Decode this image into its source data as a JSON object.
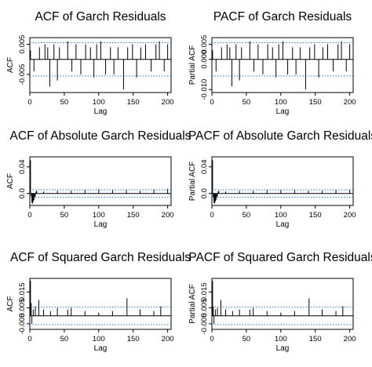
{
  "colors": {
    "bar": "#000000",
    "zero_line": "#000000",
    "confidence_band": "#1f77d4",
    "frame": "#000000",
    "background": "#ffffff"
  },
  "chart_data": [
    {
      "type": "bar",
      "title": "ACF of Garch Residuals",
      "xlabel": "Lag",
      "ylabel": "ACF",
      "xlim": [
        0,
        205
      ],
      "ylim": [
        -0.011,
        0.0072
      ],
      "xticks": [
        0,
        50,
        100,
        150,
        200
      ],
      "yticks": [
        -0.005,
        0.005
      ],
      "ytick_labels": [
        "-0.005",
        "0.005"
      ],
      "confidence_band": [
        -0.0055,
        0.0055
      ],
      "series": [
        {
          "lags": [
            1,
            6,
            14,
            22,
            26,
            29,
            35,
            40,
            43,
            55,
            61,
            67,
            74,
            81,
            88,
            93,
            97,
            103,
            110,
            117,
            122,
            128,
            136,
            142,
            149,
            155,
            161,
            168,
            176,
            183,
            188,
            195,
            200
          ],
          "values": [
            0.003,
            -0.004,
            0.004,
            0.005,
            0.004,
            -0.009,
            0.005,
            -0.007,
            0.004,
            0.006,
            -0.004,
            0.005,
            -0.005,
            0.005,
            0.004,
            -0.006,
            0.005,
            0.006,
            -0.005,
            0.004,
            -0.005,
            0.004,
            -0.01,
            0.004,
            0.005,
            -0.006,
            0.004,
            0.005,
            -0.004,
            0.005,
            0.006,
            -0.004,
            0.005
          ]
        }
      ]
    },
    {
      "type": "bar",
      "title": "PACF of Garch Residuals",
      "xlabel": "Lag",
      "ylabel": "Partial ACF",
      "xlim": [
        0,
        205
      ],
      "ylim": [
        -0.011,
        0.0072
      ],
      "xticks": [
        0,
        50,
        100,
        150,
        200
      ],
      "yticks": [
        -0.01,
        0.0,
        0.005
      ],
      "ytick_labels": [
        "-0.010",
        "0.000",
        "0.005"
      ],
      "confidence_band": [
        -0.0055,
        0.0055
      ],
      "series": [
        {
          "lags": [
            1,
            6,
            14,
            22,
            26,
            29,
            35,
            40,
            43,
            55,
            61,
            67,
            74,
            81,
            88,
            93,
            97,
            103,
            110,
            117,
            122,
            128,
            136,
            142,
            149,
            155,
            161,
            168,
            176,
            183,
            188,
            195,
            200
          ],
          "values": [
            0.003,
            -0.004,
            0.004,
            0.005,
            0.004,
            -0.009,
            0.005,
            -0.007,
            0.004,
            0.006,
            -0.004,
            0.005,
            -0.005,
            0.005,
            0.004,
            -0.006,
            0.005,
            0.006,
            -0.005,
            0.004,
            -0.005,
            0.004,
            -0.01,
            0.004,
            0.005,
            -0.006,
            0.004,
            0.005,
            -0.004,
            0.005,
            0.006,
            -0.004,
            0.005
          ]
        }
      ]
    },
    {
      "type": "bar",
      "title": "ACF of Absolute Garch Residuals",
      "xlabel": "Lag",
      "ylabel": "ACF",
      "xlim": [
        0,
        205
      ],
      "ylim": [
        -0.018,
        0.055
      ],
      "xticks": [
        0,
        50,
        100,
        150,
        200
      ],
      "yticks": [
        0.0,
        0.04
      ],
      "ytick_labels": [
        "0.0",
        "0.04"
      ],
      "confidence_band": [
        -0.0055,
        0.0055
      ],
      "series": [
        {
          "lags": [
            1,
            2,
            3,
            4,
            5,
            6,
            7,
            8,
            9,
            10,
            20,
            40,
            60,
            80,
            100,
            120,
            140,
            160,
            180,
            200
          ],
          "values": [
            0.05,
            -0.004,
            -0.014,
            -0.015,
            -0.012,
            -0.01,
            -0.006,
            -0.004,
            0.003,
            0.004,
            0.003,
            0.004,
            0.004,
            0.005,
            0.006,
            0.005,
            0.005,
            0.004,
            0.006,
            0.007
          ]
        }
      ]
    },
    {
      "type": "bar",
      "title": "PACF of Absolute Garch Residuals",
      "xlabel": "Lag",
      "ylabel": "Partial ACF",
      "xlim": [
        0,
        205
      ],
      "ylim": [
        -0.018,
        0.055
      ],
      "xticks": [
        0,
        50,
        100,
        150,
        200
      ],
      "yticks": [
        0.0,
        0.04
      ],
      "ytick_labels": [
        "0.0",
        "0.04"
      ],
      "confidence_band": [
        -0.0055,
        0.0055
      ],
      "series": [
        {
          "lags": [
            1,
            2,
            3,
            4,
            5,
            6,
            7,
            8,
            9,
            10,
            20,
            40,
            60,
            80,
            100,
            120,
            140,
            160,
            180,
            200
          ],
          "values": [
            0.05,
            -0.006,
            -0.014,
            -0.015,
            -0.012,
            -0.01,
            -0.006,
            -0.004,
            0.003,
            0.004,
            0.003,
            0.004,
            0.004,
            0.005,
            0.005,
            0.005,
            0.004,
            0.004,
            0.005,
            0.005
          ]
        }
      ]
    },
    {
      "type": "bar",
      "title": "ACF of Squared Garch Residuals",
      "xlabel": "Lag",
      "ylabel": "ACF",
      "xlim": [
        0,
        205
      ],
      "ylim": [
        -0.0085,
        0.0235
      ],
      "xticks": [
        0,
        50,
        100,
        150,
        200
      ],
      "yticks": [
        -0.005,
        0.005,
        0.015
      ],
      "ytick_labels": [
        "-0.005",
        "0.005",
        "0.015"
      ],
      "confidence_band": [
        -0.0055,
        0.0055
      ],
      "series": [
        {
          "lags": [
            1,
            2,
            3,
            5,
            8,
            13,
            20,
            30,
            40,
            55,
            60,
            80,
            100,
            120,
            141,
            160,
            180,
            190
          ],
          "values": [
            0.022,
            0.008,
            -0.005,
            0.004,
            0.006,
            0.01,
            0.004,
            0.003,
            0.005,
            0.004,
            0.005,
            0.003,
            0.002,
            0.003,
            0.011,
            0.004,
            0.003,
            0.006
          ]
        }
      ]
    },
    {
      "type": "bar",
      "title": "PACF of Squared Garch Residuals",
      "xlabel": "Lag",
      "ylabel": "Partial ACF",
      "xlim": [
        0,
        205
      ],
      "ylim": [
        -0.0085,
        0.0235
      ],
      "xticks": [
        0,
        50,
        100,
        150,
        200
      ],
      "yticks": [
        -0.005,
        0.005,
        0.015
      ],
      "ytick_labels": [
        "-0.005",
        "0.005",
        "0.015"
      ],
      "confidence_band": [
        -0.0055,
        0.0055
      ],
      "series": [
        {
          "lags": [
            1,
            2,
            3,
            5,
            8,
            13,
            20,
            30,
            40,
            55,
            60,
            80,
            100,
            120,
            141,
            160,
            180,
            190
          ],
          "values": [
            0.022,
            0.006,
            -0.005,
            0.004,
            0.005,
            0.01,
            0.004,
            0.003,
            0.004,
            0.004,
            0.005,
            0.003,
            0.002,
            0.003,
            0.011,
            0.004,
            0.003,
            0.006
          ]
        }
      ]
    }
  ]
}
